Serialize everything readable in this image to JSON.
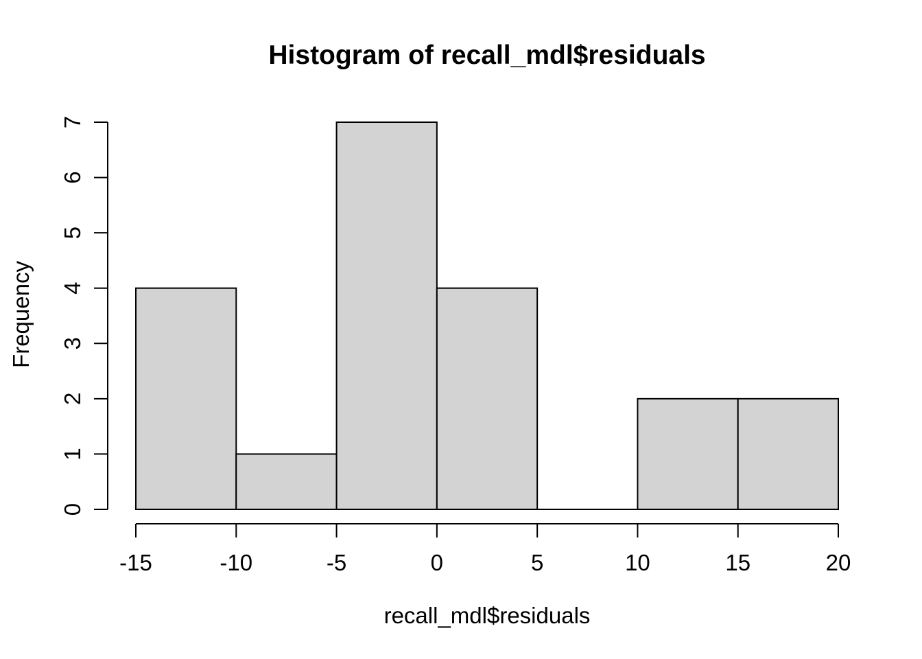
{
  "chart_data": {
    "type": "bar",
    "subtype": "histogram",
    "title": "Histogram of recall_mdl$residuals",
    "xlabel": "recall_mdl$residuals",
    "ylabel": "Frequency",
    "breaks": [
      -15,
      -10,
      -5,
      0,
      5,
      10,
      15,
      20
    ],
    "counts": [
      4,
      1,
      7,
      4,
      0,
      2,
      2
    ],
    "categories": [
      "[-15,-10]",
      "(-10,-5]",
      "(-5,0]",
      "(0,5]",
      "(5,10]",
      "(10,15]",
      "(15,20]"
    ],
    "values": [
      4,
      1,
      7,
      4,
      0,
      2,
      2
    ],
    "x_ticks": [
      -15,
      -10,
      -5,
      0,
      5,
      10,
      15,
      20
    ],
    "y_ticks": [
      0,
      1,
      2,
      3,
      4,
      5,
      6,
      7
    ],
    "xlim": [
      -15,
      20
    ],
    "ylim": [
      0,
      7
    ],
    "grid": false,
    "legend": "none",
    "colors": {
      "bar_fill": "#d3d3d3",
      "bar_stroke": "#000000",
      "axis": "#000000",
      "text": "#000000",
      "background": "#ffffff"
    }
  }
}
